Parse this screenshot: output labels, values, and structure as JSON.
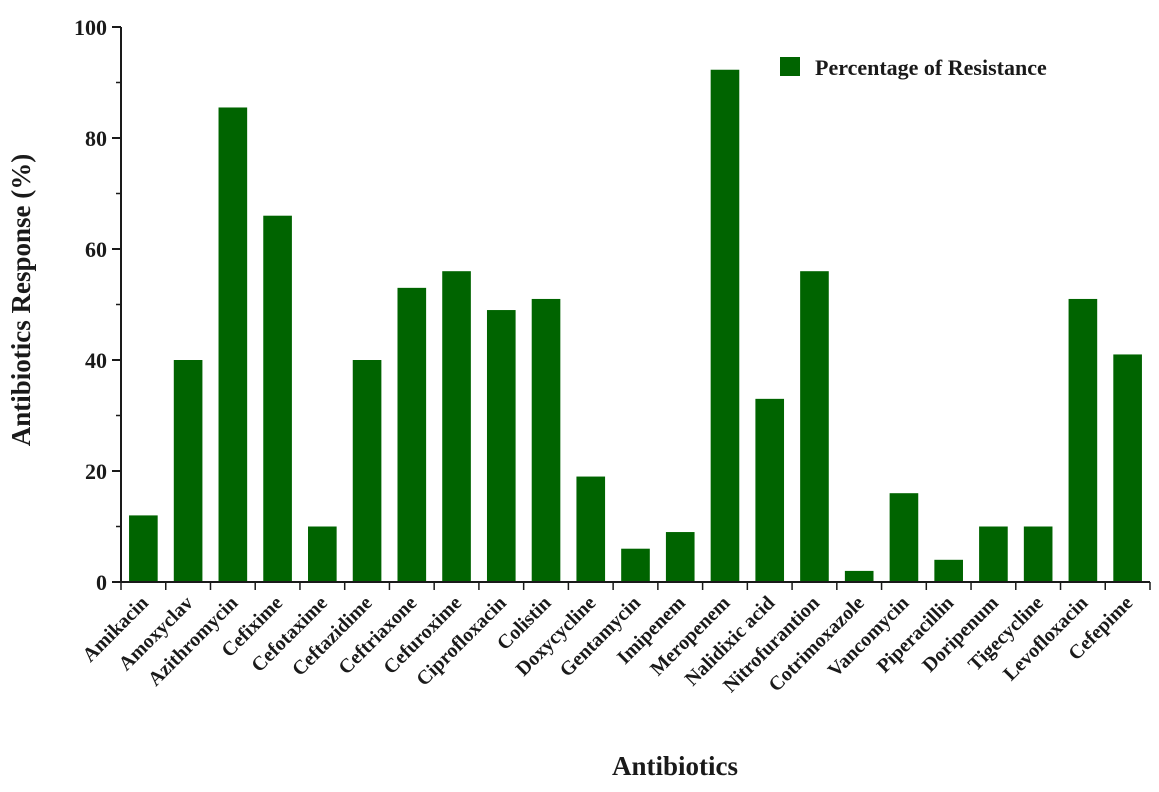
{
  "chart_data": {
    "type": "bar",
    "title": "",
    "xlabel": "Antibiotics",
    "ylabel": "Antibiotics Response (%)",
    "ylim": [
      0,
      100
    ],
    "yticks": [
      "0",
      "20",
      "40",
      "60",
      "80",
      "100"
    ],
    "grid": false,
    "legend_position": "top-right",
    "categories": [
      "Amikacin",
      "Amoxyclav",
      "Azithromycin",
      "Cefixime",
      "Cefotaxime",
      "Ceftazidime",
      "Ceftriaxone",
      "Cefuroxime",
      "Ciprofloxacin",
      "Colistin",
      "Doxycycline",
      "Gentamycin",
      "Imipenem",
      "Meropenem",
      "Nalidixic acid",
      "Nitrofurantion",
      "Cotrimoxazole",
      "Vancomycin",
      "Piperacillin",
      "Doripenum",
      "Tigecycline",
      "Levofloxacin",
      "Cefepime"
    ],
    "series": [
      {
        "name": "Percentage of Resistance",
        "color": "#006400",
        "values": [
          12,
          40,
          85.5,
          66,
          10,
          40,
          53,
          56,
          49,
          51,
          19,
          6,
          9,
          92.3,
          33,
          56,
          2,
          16,
          4,
          10,
          10,
          51,
          41
        ]
      }
    ]
  }
}
